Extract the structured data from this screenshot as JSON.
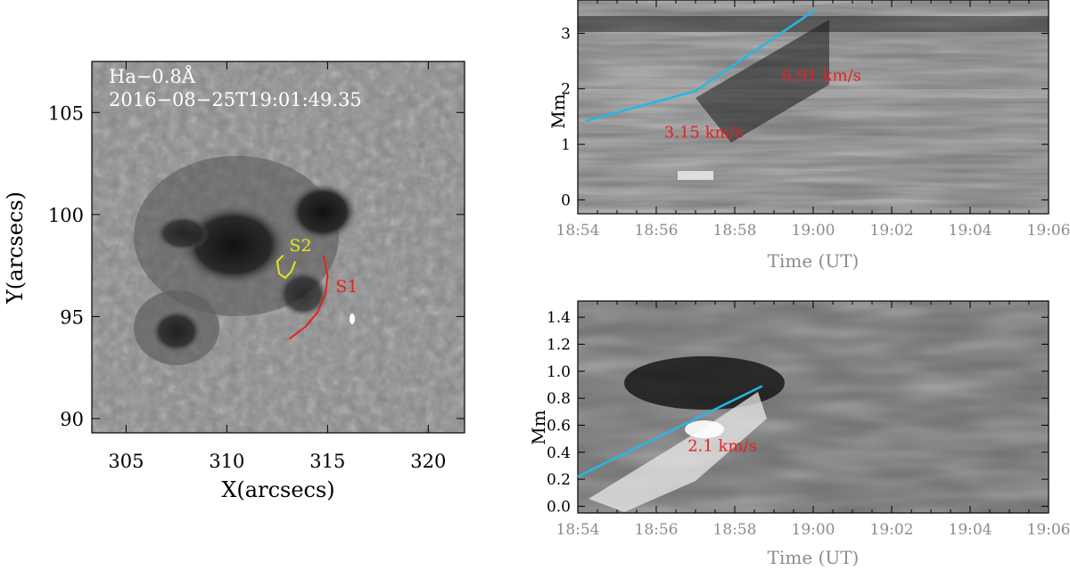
{
  "colors": {
    "axis": "#000000",
    "axis_label_gray": "#8c8c8c",
    "fit_line": "#22b8e6",
    "speed_label": "#e8201e",
    "s1_trace": "#e8201e",
    "s2_trace": "#e5e61a",
    "image_label": "#ffffff"
  },
  "chart_data": [
    {
      "type": "heatmap",
      "panel": "image",
      "description_label": "Ha-0.8Å",
      "label_line1": "Ha−0.8Å",
      "label_line2": "2016−08−25T19:01:49.35",
      "xlabel": "X(arcsecs)",
      "ylabel": "Y(arcsecs)",
      "xlim": [
        303.3,
        321.8
      ],
      "ylim": [
        89.3,
        107.5
      ],
      "xticks": [
        305,
        310,
        315,
        320
      ],
      "yticks": [
        90,
        95,
        100,
        105
      ],
      "annotations": [
        {
          "text": "S2",
          "x": 313.1,
          "y": 98.2,
          "color": "#e5e61a"
        },
        {
          "text": "S1",
          "x": 315.4,
          "y": 96.2,
          "color": "#e8201e"
        }
      ],
      "traces": [
        {
          "name": "S1",
          "points": [
            [
              313.1,
              93.9
            ],
            [
              313.9,
              94.5
            ],
            [
              314.5,
              95.2
            ],
            [
              314.9,
              96.1
            ],
            [
              315.0,
              97.0
            ],
            [
              314.8,
              98.0
            ]
          ]
        },
        {
          "name": "S2",
          "points": [
            [
              312.8,
              98.0
            ],
            [
              312.5,
              97.7
            ],
            [
              312.6,
              97.1
            ],
            [
              312.9,
              96.9
            ],
            [
              313.2,
              97.2
            ],
            [
              313.4,
              97.7
            ]
          ]
        }
      ]
    },
    {
      "type": "heatmap",
      "panel": "time-distance-1",
      "xlabel": "Time (UT)",
      "ylabel": "Mm",
      "xlim": [
        0,
        12
      ],
      "ylim": [
        -0.25,
        3.6
      ],
      "xticks": [
        "18:54",
        "18:56",
        "18:58",
        "19:00",
        "19:02",
        "19:04",
        "19:06"
      ],
      "yticks": [
        0,
        1,
        2,
        3
      ],
      "fit_lines": [
        {
          "x": [
            0.2,
            3.0
          ],
          "y": [
            1.42,
            1.96
          ],
          "speed_label": "3.15 km/s",
          "label_x": 2.2,
          "label_y": 1.12
        },
        {
          "x": [
            3.0,
            6.05
          ],
          "y": [
            1.96,
            3.42
          ],
          "speed_label": "6.91 km/s",
          "label_x": 5.2,
          "label_y": 2.15
        }
      ]
    },
    {
      "type": "heatmap",
      "panel": "time-distance-2",
      "xlabel": "Time (UT)",
      "ylabel": "Mm",
      "xlim": [
        0,
        12
      ],
      "ylim": [
        -0.05,
        1.52
      ],
      "xticks": [
        "18:54",
        "18:56",
        "18:58",
        "19:00",
        "19:02",
        "19:04",
        "19:06"
      ],
      "yticks": [
        "0.0",
        "0.2",
        "0.4",
        "0.6",
        "0.8",
        "1.0",
        "1.2",
        "1.4"
      ],
      "fit_lines": [
        {
          "x": [
            0.0,
            4.7
          ],
          "y": [
            0.22,
            0.89
          ],
          "speed_label": "2.1 km/s",
          "label_x": 2.8,
          "label_y": 0.41
        }
      ]
    }
  ]
}
